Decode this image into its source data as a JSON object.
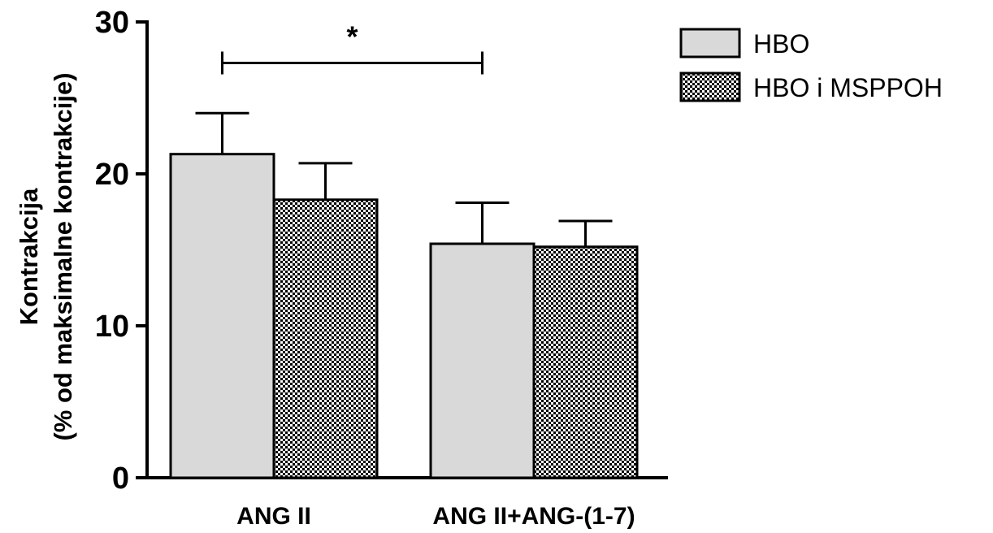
{
  "chart_data": {
    "type": "bar",
    "title": "",
    "xlabel": "",
    "ylabel_line1": "Kontrakcija",
    "ylabel_line2": "(% od maksimalne kontrakcije)",
    "ylim": [
      0,
      30
    ],
    "yticks": [
      0,
      10,
      20,
      30
    ],
    "ytick_labels": [
      "0",
      "10",
      "20",
      "30"
    ],
    "categories": [
      "ANG II",
      "ANG II+ANG-(1-7)"
    ],
    "series": [
      {
        "name": "HBO",
        "values": [
          21.3,
          15.4
        ],
        "errors": [
          2.7,
          2.7
        ],
        "fill": "#d9d9d9",
        "pattern": "solid"
      },
      {
        "name": "HBO i MSPPOH",
        "values": [
          18.3,
          15.2
        ],
        "errors": [
          2.4,
          1.7
        ],
        "fill": "#000000",
        "pattern": "checkered"
      }
    ],
    "legend_position": "top-right",
    "grid": false,
    "significance": {
      "label": "*",
      "from_category": "ANG II",
      "to_category": "ANG II+ANG-(1-7)",
      "level": 27.3
    }
  }
}
